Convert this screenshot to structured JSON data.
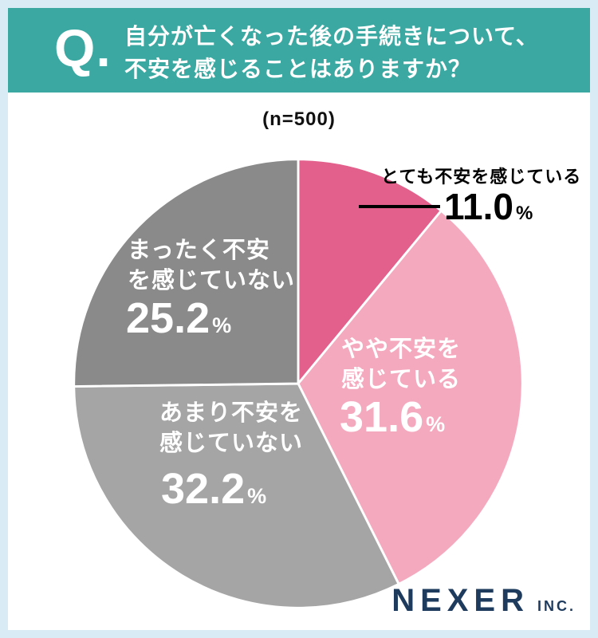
{
  "header": {
    "q_mark": "Q.",
    "question": "自分が亡くなった後の手続きについて、\n不安を感じることはありますか？",
    "bg_color": "#3BA8A1"
  },
  "chart_data": {
    "type": "pie",
    "title": "自分が亡くなった後の手続きについて、不安を感じることはありますか？",
    "n_label": "(n=500)",
    "n": 500,
    "start_angle_deg": -90,
    "direction": "clockwise",
    "percent_sign": "%",
    "slices": [
      {
        "label": "とても不安を感じている",
        "value": 11.0,
        "value_text": "11.0",
        "color": "#E2608B",
        "label_style": "outside-black"
      },
      {
        "label": "やや不安を\n感じている",
        "value": 31.6,
        "value_text": "31.6",
        "color": "#F5A9BF",
        "label_style": "inside-white"
      },
      {
        "label": "あまり不安を\n感じていない",
        "value": 32.2,
        "value_text": "32.2",
        "color": "#A5A5A5",
        "label_style": "inside-white"
      },
      {
        "label": "まったく不安\nを感じていない",
        "value": 25.2,
        "value_text": "25.2",
        "color": "#8A8A8A",
        "label_style": "inside-white"
      }
    ],
    "slice_border_color": "#FFFFFF"
  },
  "footer": {
    "brand": "NEXER",
    "brand_suffix": "INC.",
    "color": "#1E3B5E"
  }
}
